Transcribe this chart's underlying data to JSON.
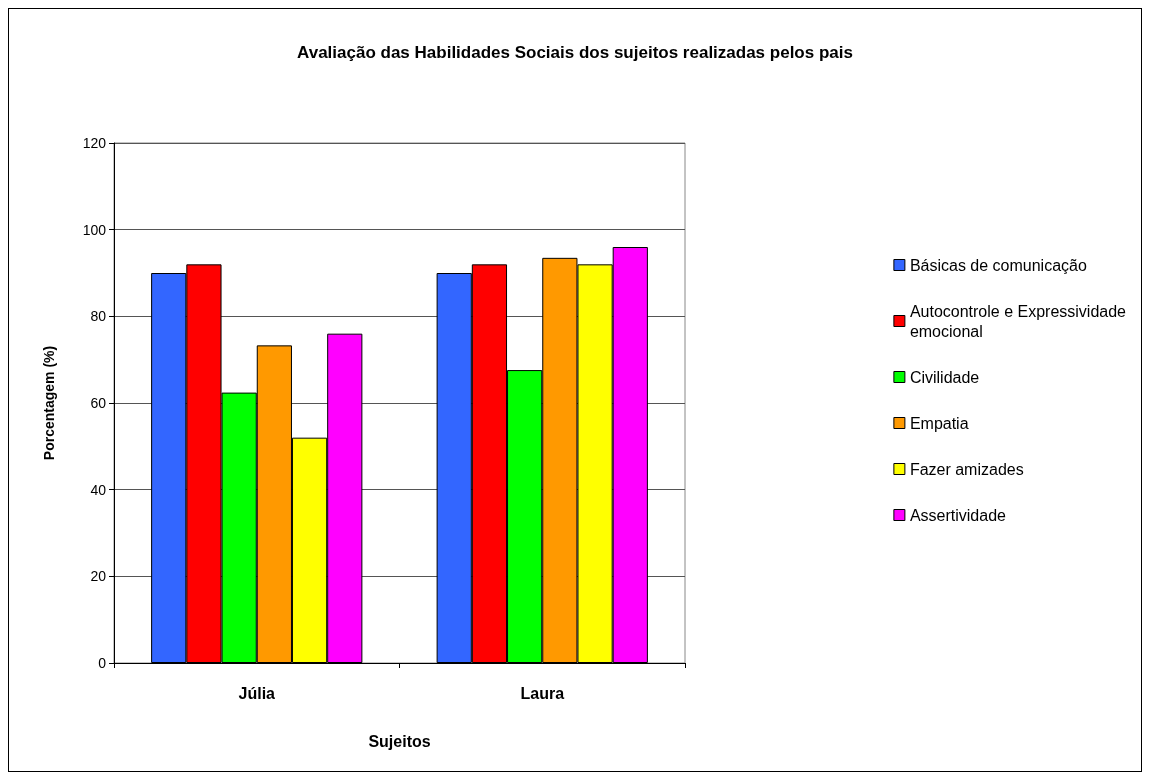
{
  "chart_data": {
    "type": "bar",
    "title": "Avaliação das Habilidades Sociais dos sujeitos realizadas pelos pais",
    "xlabel": "Sujeitos",
    "ylabel": "Porcentagem (%)",
    "categories": [
      "Júlia",
      "Laura"
    ],
    "series": [
      {
        "name": "Básicas de comunicação",
        "color": "#3366ff",
        "values": [
          90,
          90
        ]
      },
      {
        "name": "Autocontrole e Expressividade emocional",
        "color": "#ff0000",
        "values": [
          92,
          92
        ]
      },
      {
        "name": "Civilidade",
        "color": "#00ff00",
        "values": [
          62.4,
          67.6
        ]
      },
      {
        "name": "Empatia",
        "color": "#ff9900",
        "values": [
          73.3,
          93.5
        ]
      },
      {
        "name": "Fazer amizades",
        "color": "#ffff00",
        "values": [
          52,
          92
        ]
      },
      {
        "name": "Assertividade",
        "color": "#ff00ff",
        "values": [
          76,
          96
        ]
      }
    ],
    "ylim": [
      0,
      120
    ],
    "yticks": [
      0,
      20,
      40,
      60,
      80,
      100,
      120
    ],
    "grid": "y",
    "legend": "right"
  }
}
